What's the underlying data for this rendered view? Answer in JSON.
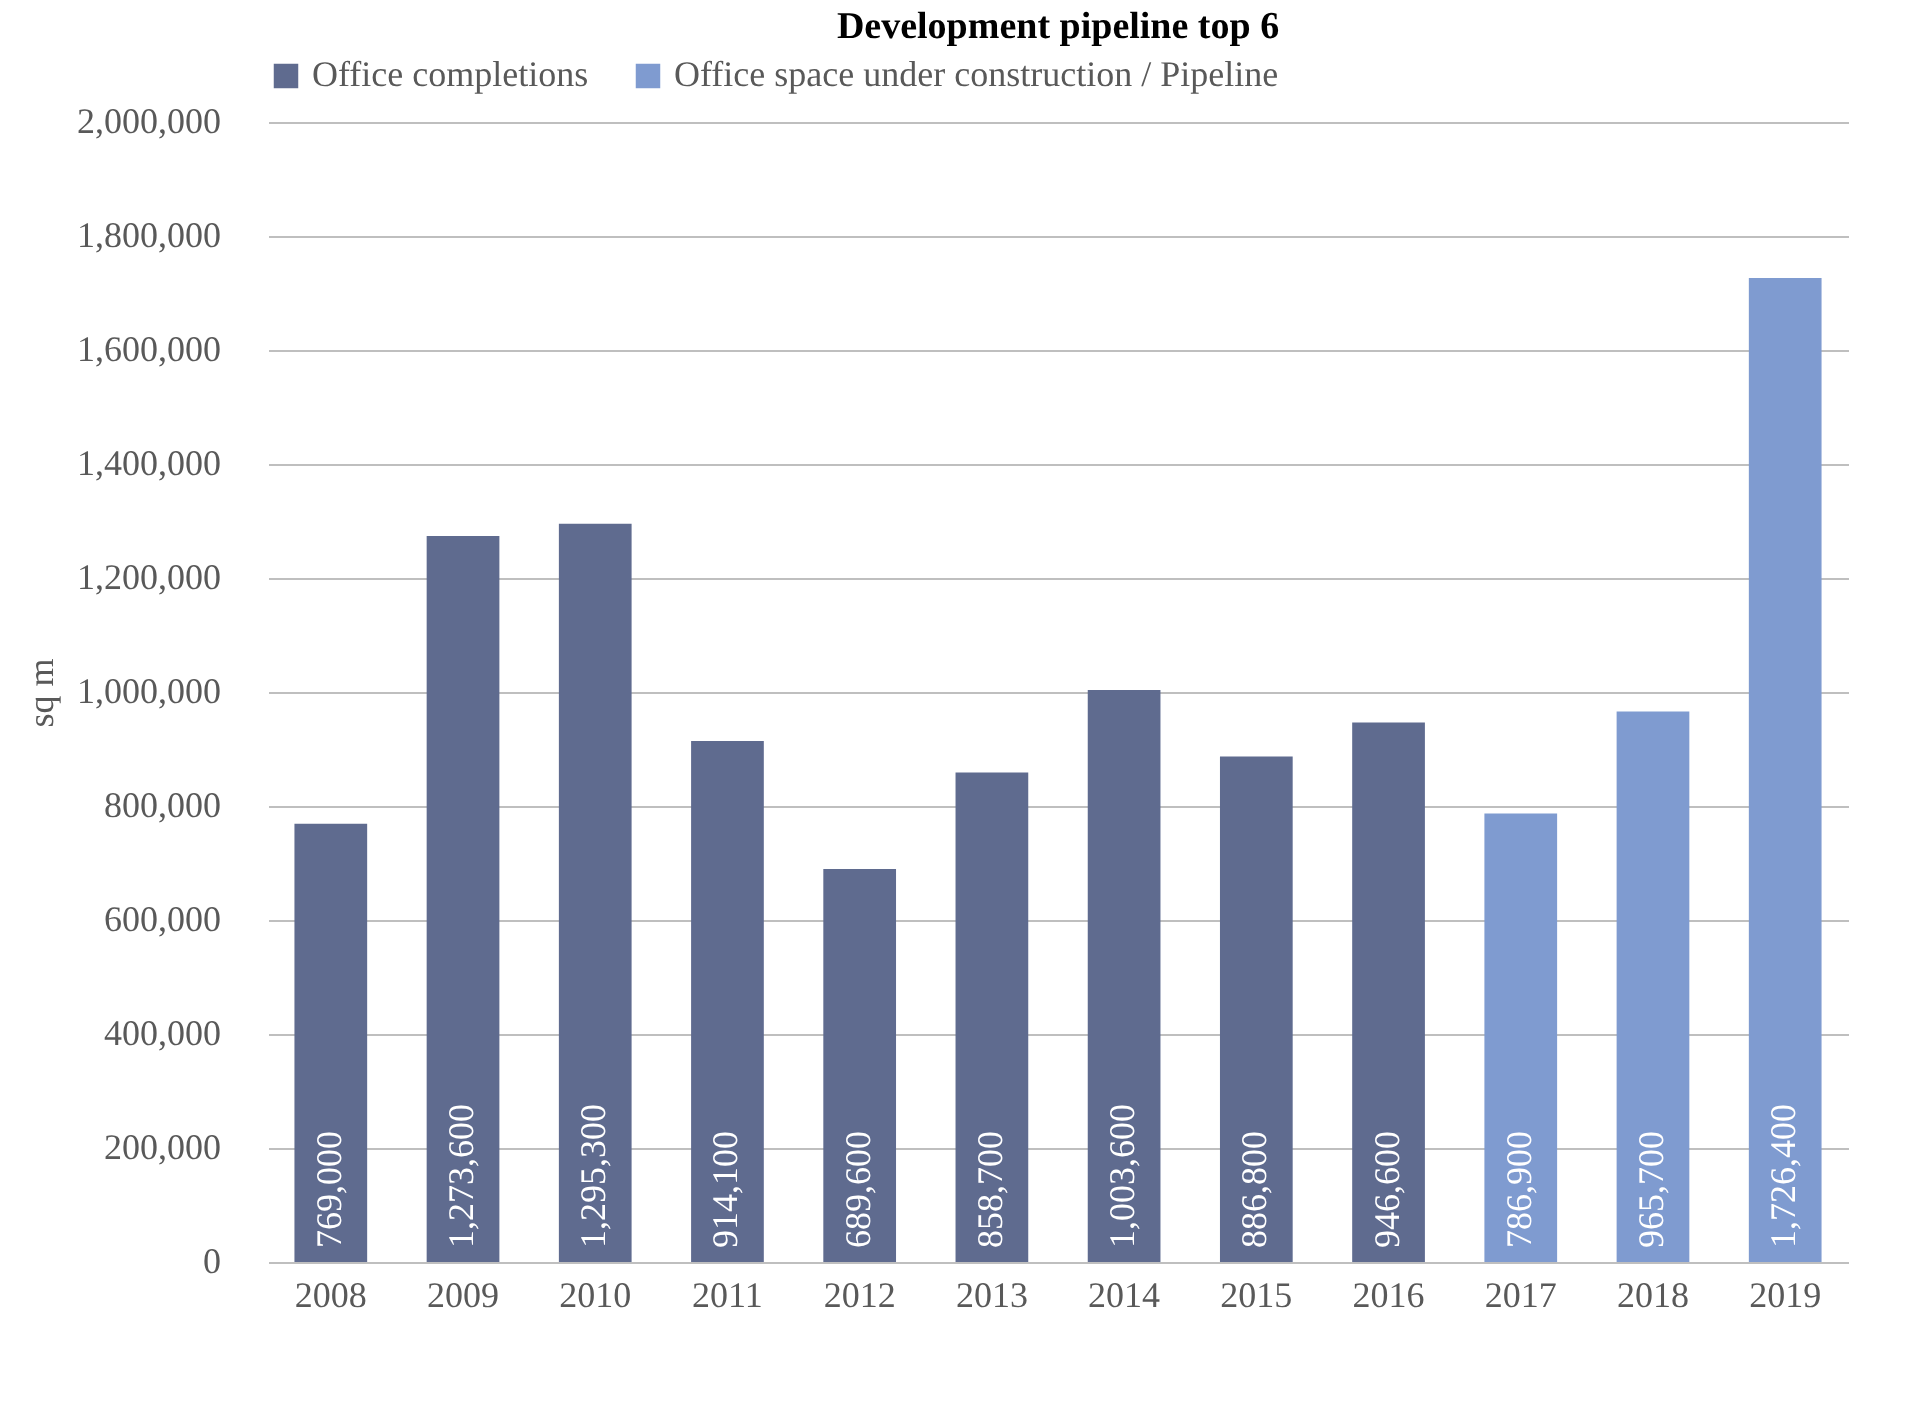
{
  "chart_data": {
    "type": "bar",
    "title": "Development pipeline top 6",
    "ylabel": "sq m",
    "categories": [
      "2008",
      "2009",
      "2010",
      "2011",
      "2012",
      "2013",
      "2014",
      "2015",
      "2016",
      "2017",
      "2018",
      "2019"
    ],
    "series": [
      {
        "name": "Office completions",
        "color": "#5f6b8f",
        "values": [
          769000,
          1273600,
          1295300,
          914100,
          689600,
          858700,
          1003600,
          886800,
          946600,
          null,
          null,
          null
        ],
        "value_labels": [
          "769,000",
          "1,273,600",
          "1,295,300",
          "914,100",
          "689,600",
          "858,700",
          "1,003,600",
          "886,800",
          "946,600",
          null,
          null,
          null
        ]
      },
      {
        "name": "Office space under construction / Pipeline",
        "color": "#7f9bd0",
        "values": [
          null,
          null,
          null,
          null,
          null,
          null,
          null,
          null,
          null,
          786900,
          965700,
          1726400
        ],
        "value_labels": [
          null,
          null,
          null,
          null,
          null,
          null,
          null,
          null,
          null,
          "786,900",
          "965,700",
          "1,726,400"
        ]
      }
    ],
    "ylim": [
      0,
      2000000
    ],
    "yticks": [
      0,
      {
        "value": 200000,
        "label": "200,000"
      },
      {
        "value": 400000,
        "label": "400,000"
      },
      {
        "value": 600000,
        "label": "600,000"
      },
      {
        "value": 800000,
        "label": "800,000"
      },
      {
        "value": 1000000,
        "label": "1,000,000"
      },
      {
        "value": 1200000,
        "label": "1,200,000"
      },
      {
        "value": 1400000,
        "label": "1,400,000"
      },
      {
        "value": 1600000,
        "label": "1,600,000"
      },
      {
        "value": 1800000,
        "label": "1,800,000"
      },
      {
        "value": 2000000,
        "label": "2,000,000"
      }
    ],
    "grid": "y",
    "legend": "top"
  }
}
